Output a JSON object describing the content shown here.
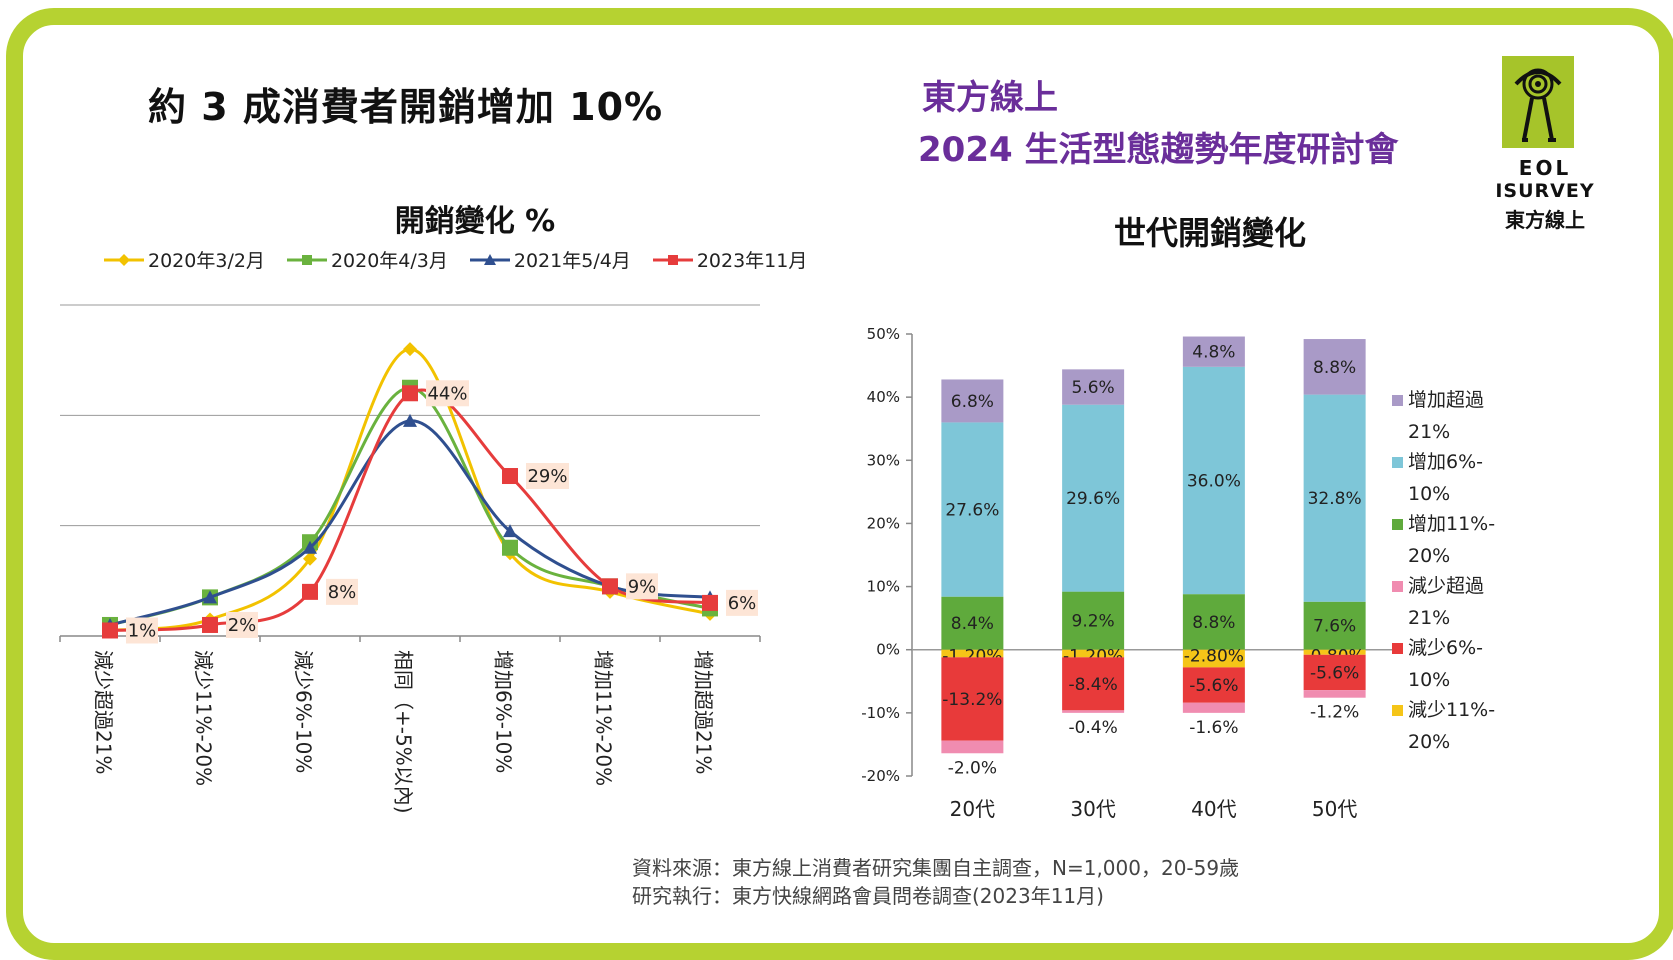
{
  "headline": "約 3 成消費者開銷增加 10%",
  "brand": {
    "line1": "東方線上",
    "line2": "2024 生活型態趨勢年度研討會"
  },
  "logo": {
    "text1": "EOL",
    "text2": "ISURVEY",
    "text3": "東方線上",
    "icon": "eye-icon"
  },
  "footnotes": [
    "資料來源：東方線上消費者研究集團自主調查，N=1,000，20-59歲",
    "研究執行：東方快線網路會員問卷調查(2023年11月)"
  ],
  "colors": {
    "frame": "#b6d231",
    "purple": "#6a2e9a"
  },
  "chart_data": [
    {
      "type": "line",
      "title": "開銷變化 %",
      "categories": [
        "減少超過21%",
        "減少11%-20%",
        "減少6%-10%",
        "相同（+-5%以內)",
        "增加6%-10%",
        "增加11%-20%",
        "增加超過21%"
      ],
      "series": [
        {
          "name": "2020年3/2月",
          "color": "#f2c200",
          "values": [
            1,
            3,
            14,
            52,
            15,
            8,
            4
          ]
        },
        {
          "name": "2020年4/3月",
          "color": "#6ab23e",
          "values": [
            2,
            7,
            17,
            45,
            16,
            9,
            5
          ]
        },
        {
          "name": "2021年5/4月",
          "color": "#2f4f8f",
          "values": [
            2,
            7,
            16,
            39,
            19,
            9,
            7
          ]
        },
        {
          "name": "2023年11月",
          "color": "#e63c3c",
          "values": [
            1,
            2,
            8,
            44,
            29,
            9,
            6
          ],
          "labels": [
            "1%",
            "2%",
            "8%",
            "44%",
            "29%",
            "9%",
            "6%"
          ]
        }
      ],
      "ylim": [
        0,
        60
      ],
      "grid": true,
      "legend": "top"
    },
    {
      "type": "bar",
      "stacked": true,
      "title": "世代開銷變化",
      "categories": [
        "20代",
        "30代",
        "40代",
        "50代"
      ],
      "ylim": [
        -20,
        50
      ],
      "yticks": [
        "50%",
        "40%",
        "30%",
        "20%",
        "10%",
        "0%",
        "-10%",
        "-20%"
      ],
      "series": [
        {
          "name": "增加超過21%",
          "legend_lines": [
            "增加超過",
            "21%"
          ],
          "color": "#a99ac7",
          "values": [
            6.8,
            5.6,
            4.8,
            8.8
          ],
          "labels": [
            "6.8%",
            "5.6%",
            "4.8%",
            "8.8%"
          ]
        },
        {
          "name": "增加6%-10%",
          "legend_lines": [
            "增加6%-",
            "10%"
          ],
          "color": "#7ec6d8",
          "values": [
            27.6,
            29.6,
            36.0,
            32.8
          ],
          "labels": [
            "27.6%",
            "29.6%",
            "36.0%",
            "32.8%"
          ]
        },
        {
          "name": "增加11%-20%",
          "legend_lines": [
            "增加11%-",
            "20%"
          ],
          "color": "#5faa3c",
          "values": [
            8.4,
            9.2,
            8.8,
            7.6
          ],
          "labels": [
            "8.4%",
            "9.2%",
            "8.8%",
            "7.6%"
          ]
        },
        {
          "name": "減少超過21%",
          "legend_lines": [
            "減少超過",
            "21%"
          ],
          "color": "#f08cb0",
          "values": [
            -2.0,
            -0.4,
            -1.6,
            -1.2
          ],
          "labels": [
            "-2.0%",
            "-0.4%",
            "-1.6%",
            "-1.2%"
          ]
        },
        {
          "name": "減少6%-10%",
          "legend_lines": [
            "減少6%-",
            "10%"
          ],
          "color": "#e83a3a",
          "values": [
            -13.2,
            -8.4,
            -5.6,
            -5.6
          ],
          "labels": [
            "-13.2%",
            "-8.4%",
            "-5.6%",
            "-5.6%"
          ]
        },
        {
          "name": "減少11%-20%",
          "legend_lines": [
            "減少11%-",
            "20%"
          ],
          "color": "#f5c518",
          "values": [
            -1.2,
            -1.2,
            -2.8,
            -0.8
          ],
          "labels": [
            "-1.20%",
            "-1.20%",
            "-2.80%",
            "-0.80%"
          ]
        }
      ],
      "legend": "right"
    }
  ]
}
